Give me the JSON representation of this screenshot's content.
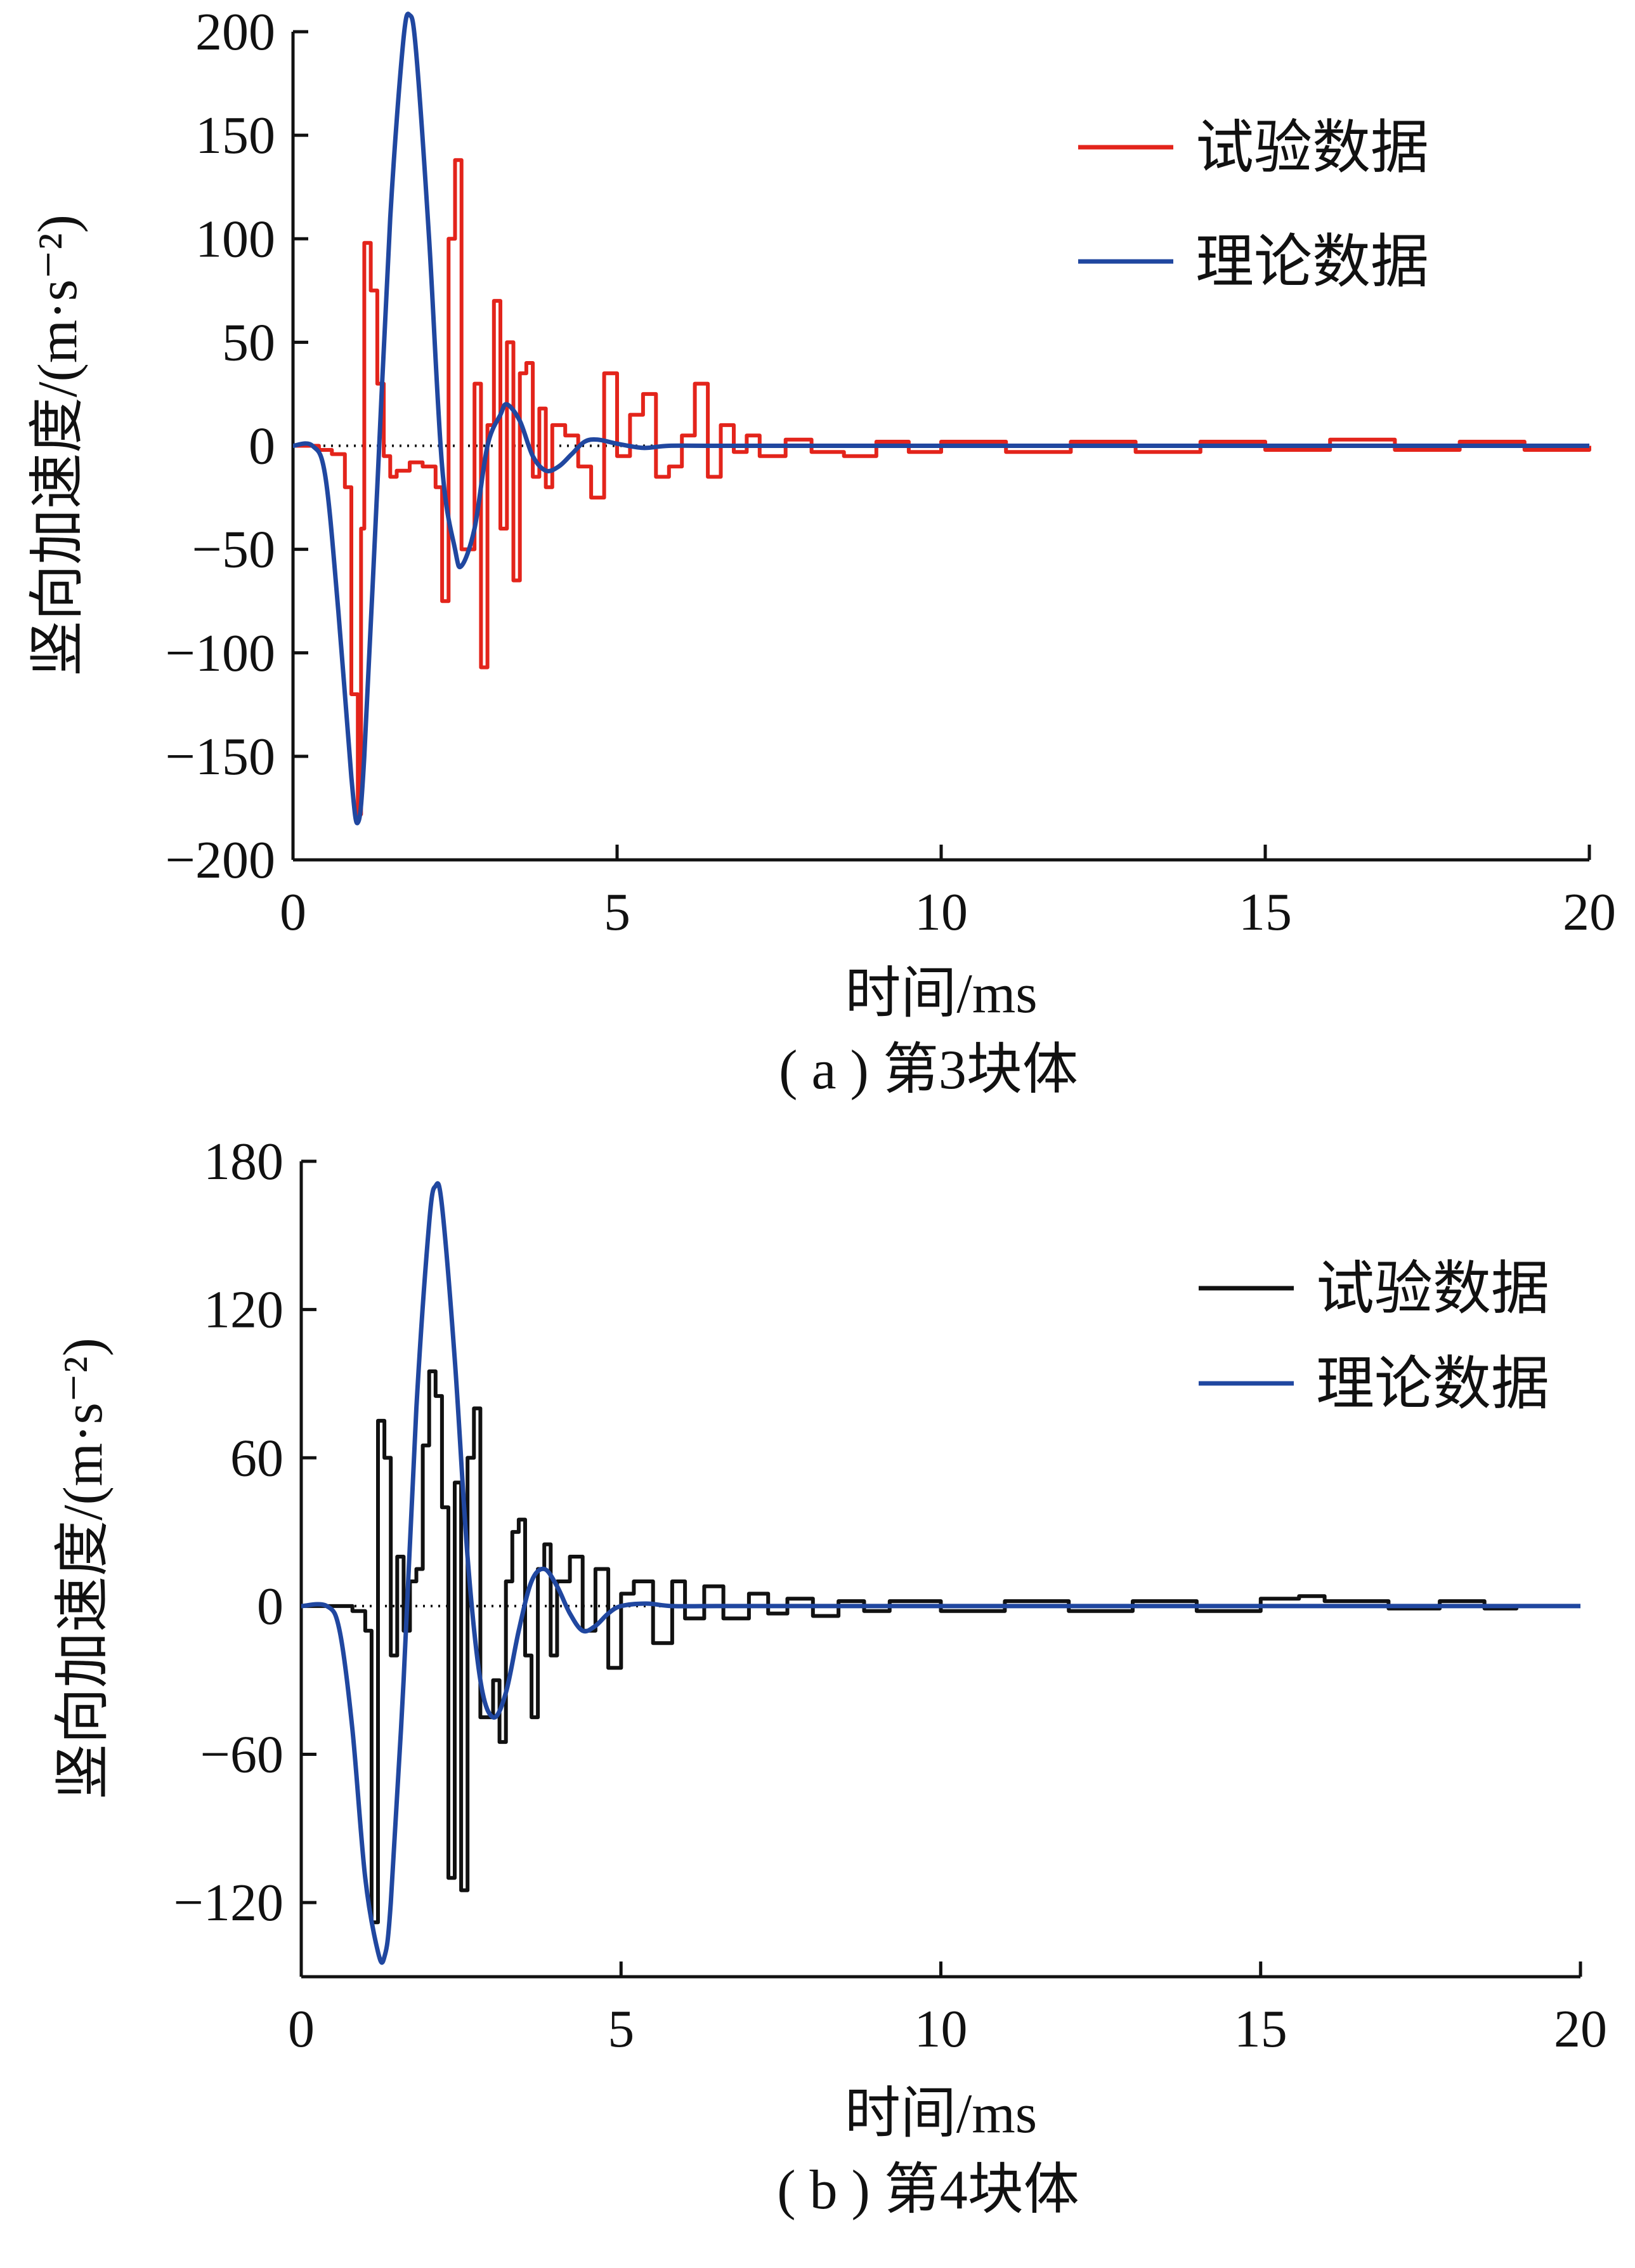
{
  "chart_data": [
    {
      "type": "line",
      "caption": "( a ) 第3块体",
      "xlabel": "时间/ms",
      "ylabel": "竖向加速度/(m·s⁻²)",
      "xlim": [
        0,
        20
      ],
      "ylim": [
        -200,
        200
      ],
      "xticks": [
        "0",
        "5",
        "10",
        "15",
        "20"
      ],
      "yticks": [
        "−200",
        "−150",
        "−100",
        "−50",
        "0",
        "50",
        "100",
        "150",
        "200"
      ],
      "zero_line": "dotted",
      "legend_position": "top-right",
      "series": [
        {
          "name": "试验数据",
          "color": "#e3241b",
          "style": "step",
          "x": [
            0,
            0.4,
            0.6,
            0.8,
            0.9,
            1.0,
            1.05,
            1.1,
            1.2,
            1.3,
            1.4,
            1.5,
            1.6,
            1.8,
            2.0,
            2.2,
            2.3,
            2.4,
            2.5,
            2.6,
            2.8,
            2.9,
            3.0,
            3.1,
            3.2,
            3.3,
            3.4,
            3.5,
            3.6,
            3.7,
            3.8,
            3.9,
            4.0,
            4.2,
            4.4,
            4.6,
            4.8,
            5.0,
            5.2,
            5.4,
            5.6,
            5.8,
            6.0,
            6.2,
            6.4,
            6.6,
            6.8,
            7.0,
            7.2,
            7.6,
            8.0,
            8.5,
            9.0,
            9.5,
            10.0,
            11.0,
            12.0,
            13.0,
            14.0,
            15.0,
            16.0,
            17.0,
            18.0,
            19.0,
            20.0
          ],
          "y": [
            0,
            -2,
            -4,
            -20,
            -120,
            -178,
            -40,
            98,
            75,
            30,
            -5,
            -15,
            -12,
            -8,
            -10,
            -20,
            -75,
            100,
            138,
            -50,
            30,
            -107,
            10,
            70,
            -40,
            50,
            -65,
            35,
            40,
            -15,
            18,
            -20,
            10,
            5,
            -10,
            -25,
            35,
            -5,
            15,
            25,
            -15,
            -10,
            5,
            30,
            -15,
            10,
            -3,
            5,
            -5,
            3,
            -3,
            -5,
            2,
            -3,
            2,
            -3,
            2,
            -3,
            2,
            -2,
            3,
            -2,
            2,
            -2,
            0
          ]
        },
        {
          "name": "理论数据",
          "color": "#2047a0",
          "style": "smooth",
          "x": [
            0,
            0.3,
            0.5,
            0.7,
            0.9,
            1.0,
            1.1,
            1.3,
            1.5,
            1.7,
            1.8,
            1.9,
            2.1,
            2.3,
            2.5,
            2.6,
            2.8,
            3.0,
            3.2,
            3.3,
            3.5,
            3.7,
            3.9,
            4.1,
            4.3,
            4.5,
            4.7,
            5.0,
            5.4,
            5.8,
            6.5,
            8.0,
            10.0,
            15.0,
            20.0
          ],
          "y": [
            0,
            0,
            -15,
            -80,
            -160,
            -182,
            -150,
            -20,
            110,
            195,
            208,
            190,
            100,
            -10,
            -50,
            -58,
            -40,
            0,
            15,
            20,
            12,
            -5,
            -12,
            -10,
            -4,
            2,
            3,
            1,
            -1,
            0,
            0,
            0,
            0,
            0,
            0
          ]
        }
      ]
    },
    {
      "type": "line",
      "caption": "( b ) 第4块体",
      "xlabel": "时间/ms",
      "ylabel": "竖向加速度/(m·s⁻²)",
      "xlim": [
        0,
        20
      ],
      "ylim": [
        -150,
        180
      ],
      "xticks": [
        "0",
        "5",
        "10",
        "15",
        "20"
      ],
      "yticks": [
        "−120",
        "−60",
        "0",
        "60",
        "120",
        "180"
      ],
      "zero_line": "dotted",
      "legend_position": "top-right",
      "series": [
        {
          "name": "试验数据",
          "color": "#111111",
          "style": "step",
          "x": [
            0,
            0.5,
            0.8,
            1.0,
            1.1,
            1.2,
            1.3,
            1.4,
            1.5,
            1.6,
            1.7,
            1.8,
            1.9,
            2.0,
            2.1,
            2.2,
            2.3,
            2.4,
            2.5,
            2.6,
            2.7,
            2.8,
            3.0,
            3.1,
            3.2,
            3.3,
            3.4,
            3.5,
            3.6,
            3.7,
            3.8,
            3.9,
            4.0,
            4.2,
            4.4,
            4.6,
            4.8,
            5.0,
            5.2,
            5.5,
            5.8,
            6.0,
            6.3,
            6.6,
            7.0,
            7.3,
            7.6,
            8.0,
            8.4,
            8.8,
            9.2,
            10.0,
            11.0,
            12.0,
            13.0,
            14.0,
            15.0,
            15.6,
            16.0,
            17.0,
            17.8,
            18.5,
            19.0,
            20.0
          ],
          "y": [
            0,
            0,
            -2,
            -10,
            -128,
            75,
            60,
            -20,
            20,
            -10,
            10,
            15,
            65,
            95,
            85,
            40,
            -110,
            50,
            -115,
            60,
            80,
            -45,
            -30,
            -55,
            10,
            30,
            35,
            -20,
            -45,
            15,
            25,
            -20,
            10,
            20,
            -10,
            15,
            -25,
            5,
            10,
            -15,
            10,
            -5,
            8,
            -5,
            5,
            -3,
            3,
            -4,
            2,
            -2,
            2,
            -2,
            2,
            -2,
            2,
            -2,
            3,
            4,
            2,
            -1,
            2,
            -1,
            0,
            0
          ]
        },
        {
          "name": "理论数据",
          "color": "#2047a0",
          "style": "smooth",
          "x": [
            0,
            0.4,
            0.6,
            0.8,
            1.0,
            1.2,
            1.3,
            1.4,
            1.6,
            1.8,
            2.0,
            2.1,
            2.2,
            2.4,
            2.6,
            2.8,
            3.0,
            3.2,
            3.4,
            3.6,
            3.8,
            4.0,
            4.2,
            4.4,
            4.6,
            4.8,
            5.0,
            5.4,
            5.8,
            6.5,
            8.0,
            10.0,
            15.0,
            20.0
          ],
          "y": [
            0,
            0,
            -10,
            -50,
            -110,
            -140,
            -142,
            -120,
            -30,
            80,
            155,
            170,
            162,
            100,
            20,
            -30,
            -45,
            -35,
            -10,
            10,
            15,
            8,
            -3,
            -10,
            -8,
            -3,
            0,
            1,
            0,
            0,
            0,
            0,
            0,
            0
          ]
        }
      ]
    }
  ]
}
